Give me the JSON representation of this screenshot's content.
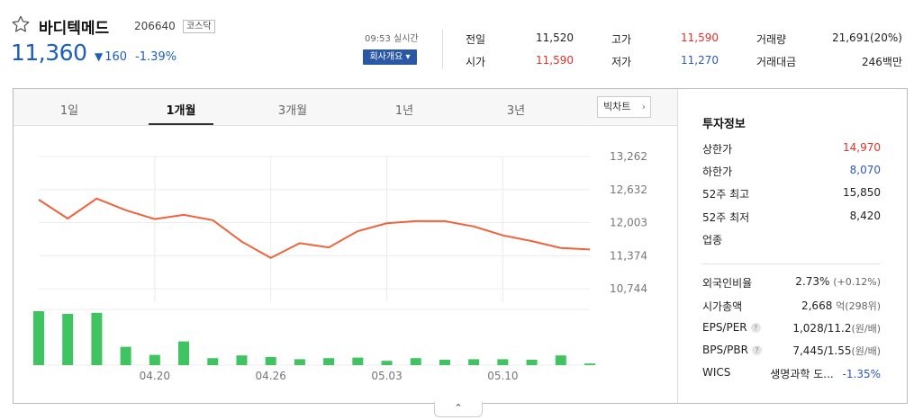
{
  "stock": {
    "name": "바디텍메드",
    "code": "206640",
    "market": "코스닥",
    "price": "11,360",
    "change_arrow": "▼",
    "change": "160",
    "change_pct": "-1.39%"
  },
  "realtime_label": "09:53 실시간",
  "company_button": "회사개요",
  "quote": {
    "prev_close_label": "전일",
    "prev_close": "11,520",
    "open_label": "시가",
    "open": "11,590",
    "high_label": "고가",
    "high": "11,590",
    "low_label": "저가",
    "low": "11,270",
    "volume_label": "거래량",
    "volume": "21,691(20%)",
    "amount_label": "거래대금",
    "amount": "246백만"
  },
  "tabs": [
    "1일",
    "1개월",
    "3개월",
    "1년",
    "3년"
  ],
  "active_tab": "1개월",
  "big_chart_button": "빅차트",
  "invest": {
    "title": "투자정보",
    "upper_limit_label": "상한가",
    "upper_limit": "14,970",
    "lower_limit_label": "하한가",
    "lower_limit": "8,070",
    "high52_label": "52주 최고",
    "high52": "15,850",
    "low52_label": "52주 최저",
    "low52": "8,420",
    "sector_label": "업종",
    "foreign_label": "외국인비율",
    "foreign": "2.73%",
    "foreign_change": "(+0.12%)",
    "mcap_label": "시가총액",
    "mcap": "2,668",
    "mcap_unit": "억(298위)",
    "eps_label": "EPS/PER",
    "eps": "1,028/11.2",
    "eps_unit": "(원/배)",
    "bps_label": "BPS/PBR",
    "bps": "7,445/1.55",
    "bps_unit": "(원/배)",
    "wics_label": "WICS",
    "wics": "생명과학 도...",
    "wics_change": "-1.35%"
  },
  "colors": {
    "up": "#e0312a",
    "down": "#2b58c6",
    "line": "#f0623a",
    "volume": "#3fc461",
    "brand": "#2b58a6"
  },
  "chart_data": {
    "type": "line",
    "y_ticks": [
      "13,262",
      "12,632",
      "12,003",
      "11,374",
      "10,744"
    ],
    "ylim": [
      10744,
      13262
    ],
    "x_ticks": [
      "04.20",
      "04.26",
      "05.03",
      "05.10"
    ],
    "x_tick_index": [
      4,
      8,
      12,
      16
    ],
    "price_series": [
      12440,
      12080,
      12460,
      12240,
      12070,
      12150,
      12050,
      11640,
      11330,
      11610,
      11530,
      11840,
      11990,
      12030,
      12030,
      11930,
      11760,
      11650,
      11520,
      11490
    ],
    "volume_series": [
      1.0,
      0.95,
      0.97,
      0.34,
      0.19,
      0.44,
      0.13,
      0.18,
      0.15,
      0.11,
      0.13,
      0.14,
      0.08,
      0.13,
      0.1,
      0.11,
      0.11,
      0.1,
      0.18,
      0.03
    ],
    "grid": true
  }
}
